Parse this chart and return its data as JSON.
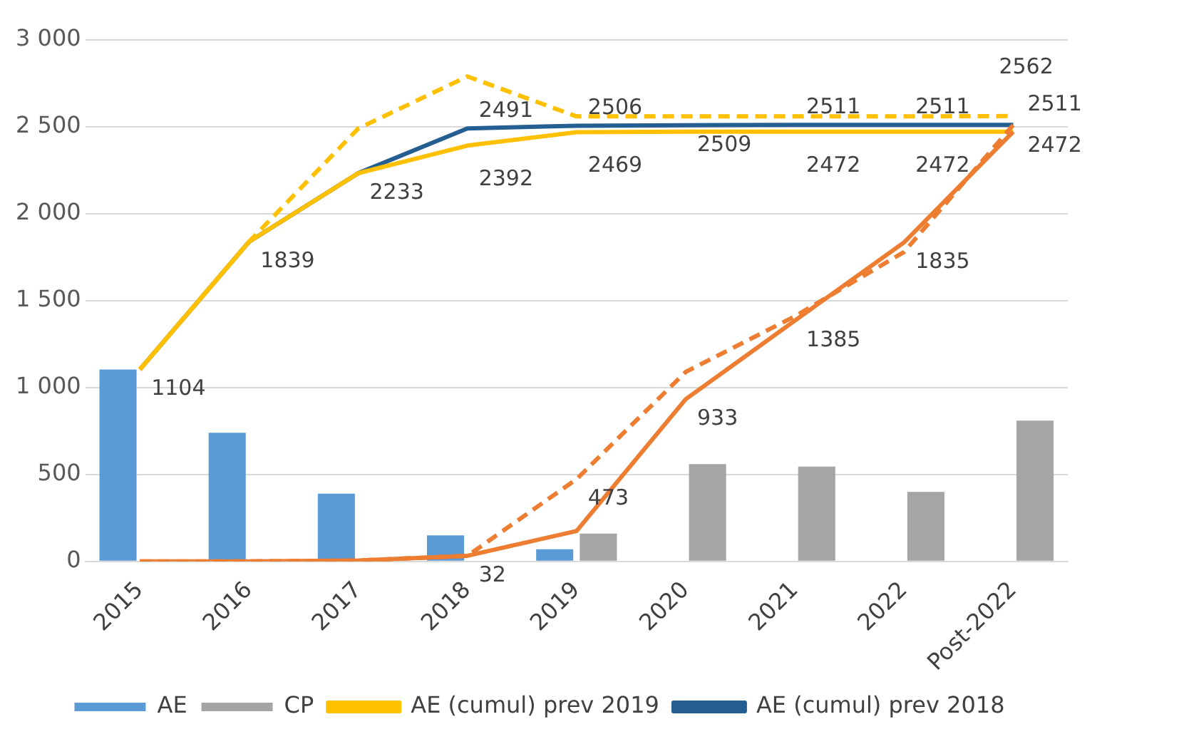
{
  "chart_data": {
    "type": "bar",
    "categories": [
      "2015",
      "2016",
      "2017",
      "2018",
      "2019",
      "2020",
      "2021",
      "2022",
      "Post-2022"
    ],
    "series": [
      {
        "name": "AE",
        "color": "#5b9bd5",
        "values": [
          1104,
          740,
          390,
          150,
          70,
          null,
          null,
          null,
          null
        ]
      },
      {
        "name": "CP",
        "color": "#a5a5a5",
        "values": [
          null,
          null,
          null,
          null,
          160,
          560,
          545,
          400,
          810
        ]
      },
      {
        "type": "line",
        "color": "#ffc000",
        "line_style": "dashed",
        "values": [
          1104,
          1839,
          2490,
          2790,
          2560,
          2560,
          2560,
          2560,
          2562
        ],
        "value_labels": [
          null,
          null,
          null,
          null,
          null,
          null,
          null,
          null,
          "2562"
        ]
      },
      {
        "type": "line",
        "color": "#ed7d31",
        "line_style": "dashed",
        "values": [
          0,
          0,
          5,
          32,
          473,
          1090,
          1410,
          1780,
          2511
        ],
        "value_labels": [
          null,
          null,
          null,
          null,
          "473",
          null,
          null,
          null,
          null
        ]
      },
      {
        "type": "line",
        "color": "#ed7d31",
        "line_style": "solid",
        "values": [
          0,
          0,
          5,
          32,
          175,
          933,
          1385,
          1835,
          2472
        ],
        "value_labels": [
          null,
          null,
          null,
          "32",
          null,
          "933",
          "1385",
          "1835",
          null
        ]
      },
      {
        "name": "AE (cumul) prev 2019",
        "type": "line",
        "color": "#ffc000",
        "line_style": "solid",
        "values": [
          1104,
          1839,
          2233,
          2392,
          2469,
          2472,
          2472,
          2472,
          2472
        ],
        "value_labels": [
          null,
          null,
          null,
          "2392",
          "2469",
          null,
          "2472",
          "2472",
          "2472"
        ]
      },
      {
        "name": "AE (cumul) prev 2018",
        "type": "line",
        "color": "#255e91",
        "line_style": "solid",
        "values": [
          1104,
          1839,
          2233,
          2491,
          2506,
          2509,
          2511,
          2511,
          2511
        ],
        "value_labels": [
          "1104",
          "1839",
          "2233",
          "2491",
          "2506",
          "2509",
          "2511",
          "2511",
          "2511"
        ]
      }
    ],
    "ylim": [
      0,
      3000
    ],
    "yticks": [
      {
        "value": 0,
        "label": "0"
      },
      {
        "value": 500,
        "label": "500"
      },
      {
        "value": 1000,
        "label": "1 000"
      },
      {
        "value": 1500,
        "label": "1 500"
      },
      {
        "value": 2000,
        "label": "2 000"
      },
      {
        "value": 2500,
        "label": "2 500"
      },
      {
        "value": 3000,
        "label": "3 000"
      }
    ],
    "grid": "y",
    "legend": "bottom",
    "marker": "none"
  }
}
